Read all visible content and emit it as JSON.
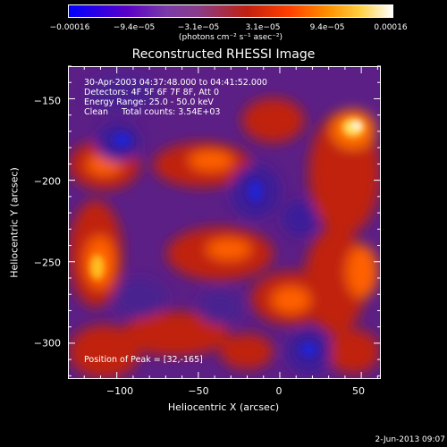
{
  "chart_data": {
    "type": "heatmap",
    "title": "Reconstructed RHESSI Image",
    "xlabel": "Heliocentric X (arcsec)",
    "ylabel": "Heliocentric Y (arcsec)",
    "xlim": [
      -130,
      62
    ],
    "ylim": [
      -322,
      -130
    ],
    "x_ticks": [
      -100,
      -50,
      0,
      50
    ],
    "x_tick_labels": [
      "−100",
      "−50",
      "0",
      "50"
    ],
    "y_ticks": [
      -150,
      -200,
      -250,
      -300
    ],
    "y_tick_labels": [
      "−150",
      "−200",
      "−250",
      "−300"
    ],
    "colorbar": {
      "ticks": [
        "−0.00016",
        "−9.4e−05",
        "−3.1e−05",
        "3.1e−05",
        "9.4e−05",
        "0.00016"
      ],
      "unit": "(photons cm⁻² s⁻¹ asec⁻²)",
      "range": [
        -0.00016,
        0.00016
      ]
    },
    "annotations": {
      "time_range": "30-Apr-2003 04:37:48.000 to 04:41:52.000",
      "detectors": "Detectors: 4F 5F 6F 7F 8F, Att 0",
      "energy": "Energy Range: 25.0 - 50.0 keV",
      "method": "Clean     Total counts: 3.54E+03",
      "peak": "Position of Peak = [32,-165]"
    },
    "peak": {
      "x": 32,
      "y": -165
    }
  },
  "footer": "2-Jun-2013 09:07",
  "colors": {
    "background": "#000000",
    "negative": "#0000ff",
    "mid": "#5b1f86",
    "positive_low": "#c02010",
    "positive_high": "#ffffff"
  }
}
